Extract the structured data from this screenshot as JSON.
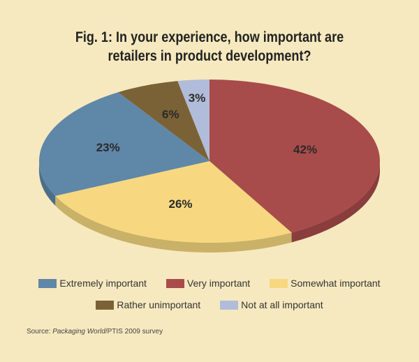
{
  "chart_data": {
    "type": "pie",
    "title": "Fig. 1: In your experience, how important are retailers in product development?",
    "title_lines": [
      "Fig. 1: In your experience, how important are",
      "retailers in product development?"
    ],
    "categories": [
      "Very important",
      "Somewhat important",
      "Extremely important",
      "Rather unimportant",
      "Not at all important"
    ],
    "values": [
      42,
      26,
      23,
      6,
      3
    ],
    "labels": [
      "42%",
      "26%",
      "23%",
      "6%",
      "3%"
    ],
    "colors": [
      "#a84b4b",
      "#f7d880",
      "#5f87a8",
      "#7a6236",
      "#b0bcd9"
    ],
    "style": "3d",
    "legend_position": "bottom",
    "legend_order": [
      {
        "name": "Extremely important",
        "color": "#5f87a8"
      },
      {
        "name": "Very important",
        "color": "#a84b4b"
      },
      {
        "name": "Somewhat important",
        "color": "#f7d880"
      },
      {
        "name": "Rather unimportant",
        "color": "#7a6236"
      },
      {
        "name": "Not at all important",
        "color": "#b0bcd9"
      }
    ]
  },
  "source": {
    "prefix": "Source: ",
    "publication": "Packaging World",
    "suffix": "/PTIS 2009 survey"
  }
}
